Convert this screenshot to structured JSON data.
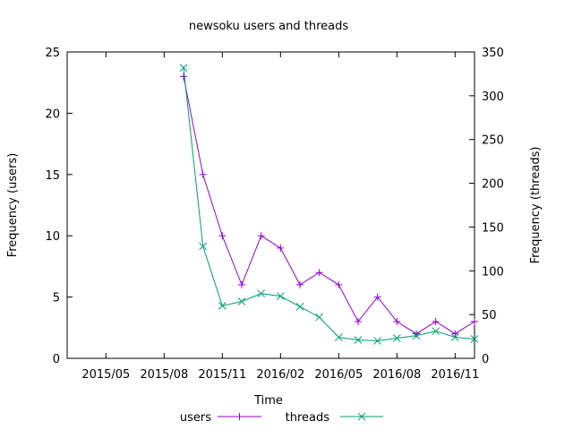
{
  "chart_data": {
    "type": "line",
    "title": "newsoku users and threads",
    "xlabel": "Time",
    "ylabel_left": "Frequency (users)",
    "ylabel_right": "Frequency (threads)",
    "x_range": [
      "2015-03",
      "2016-12"
    ],
    "y_left_range": [
      0,
      25
    ],
    "y_right_range": [
      0,
      350
    ],
    "x_ticks": [
      "2015/05",
      "2015/08",
      "2015/11",
      "2016/02",
      "2016/05",
      "2016/08",
      "2016/11"
    ],
    "y_left_ticks": [
      "0",
      "5",
      "10",
      "15",
      "20",
      "25"
    ],
    "y_right_ticks": [
      "0",
      "50",
      "100",
      "150",
      "200",
      "250",
      "300",
      "350"
    ],
    "grid": false,
    "legend_position": "bottom",
    "x": [
      "2015-09",
      "2015-10",
      "2015-11",
      "2015-12",
      "2016-01",
      "2016-02",
      "2016-03",
      "2016-04",
      "2016-05",
      "2016-06",
      "2016-07",
      "2016-08",
      "2016-09",
      "2016-10",
      "2016-11",
      "2016-12"
    ],
    "series": [
      {
        "name": "users",
        "axis": "left",
        "color": "#9400d3",
        "marker": "plus",
        "values": [
          23,
          15,
          10,
          6,
          10,
          9,
          6,
          7,
          6,
          3,
          5,
          3,
          2,
          3,
          2,
          3
        ]
      },
      {
        "name": "threads",
        "axis": "right",
        "color": "#009e73",
        "marker": "cross",
        "values": [
          332,
          128,
          60,
          65,
          74,
          71,
          59,
          47,
          24,
          21,
          20,
          23,
          26,
          31,
          24,
          22
        ]
      }
    ]
  }
}
